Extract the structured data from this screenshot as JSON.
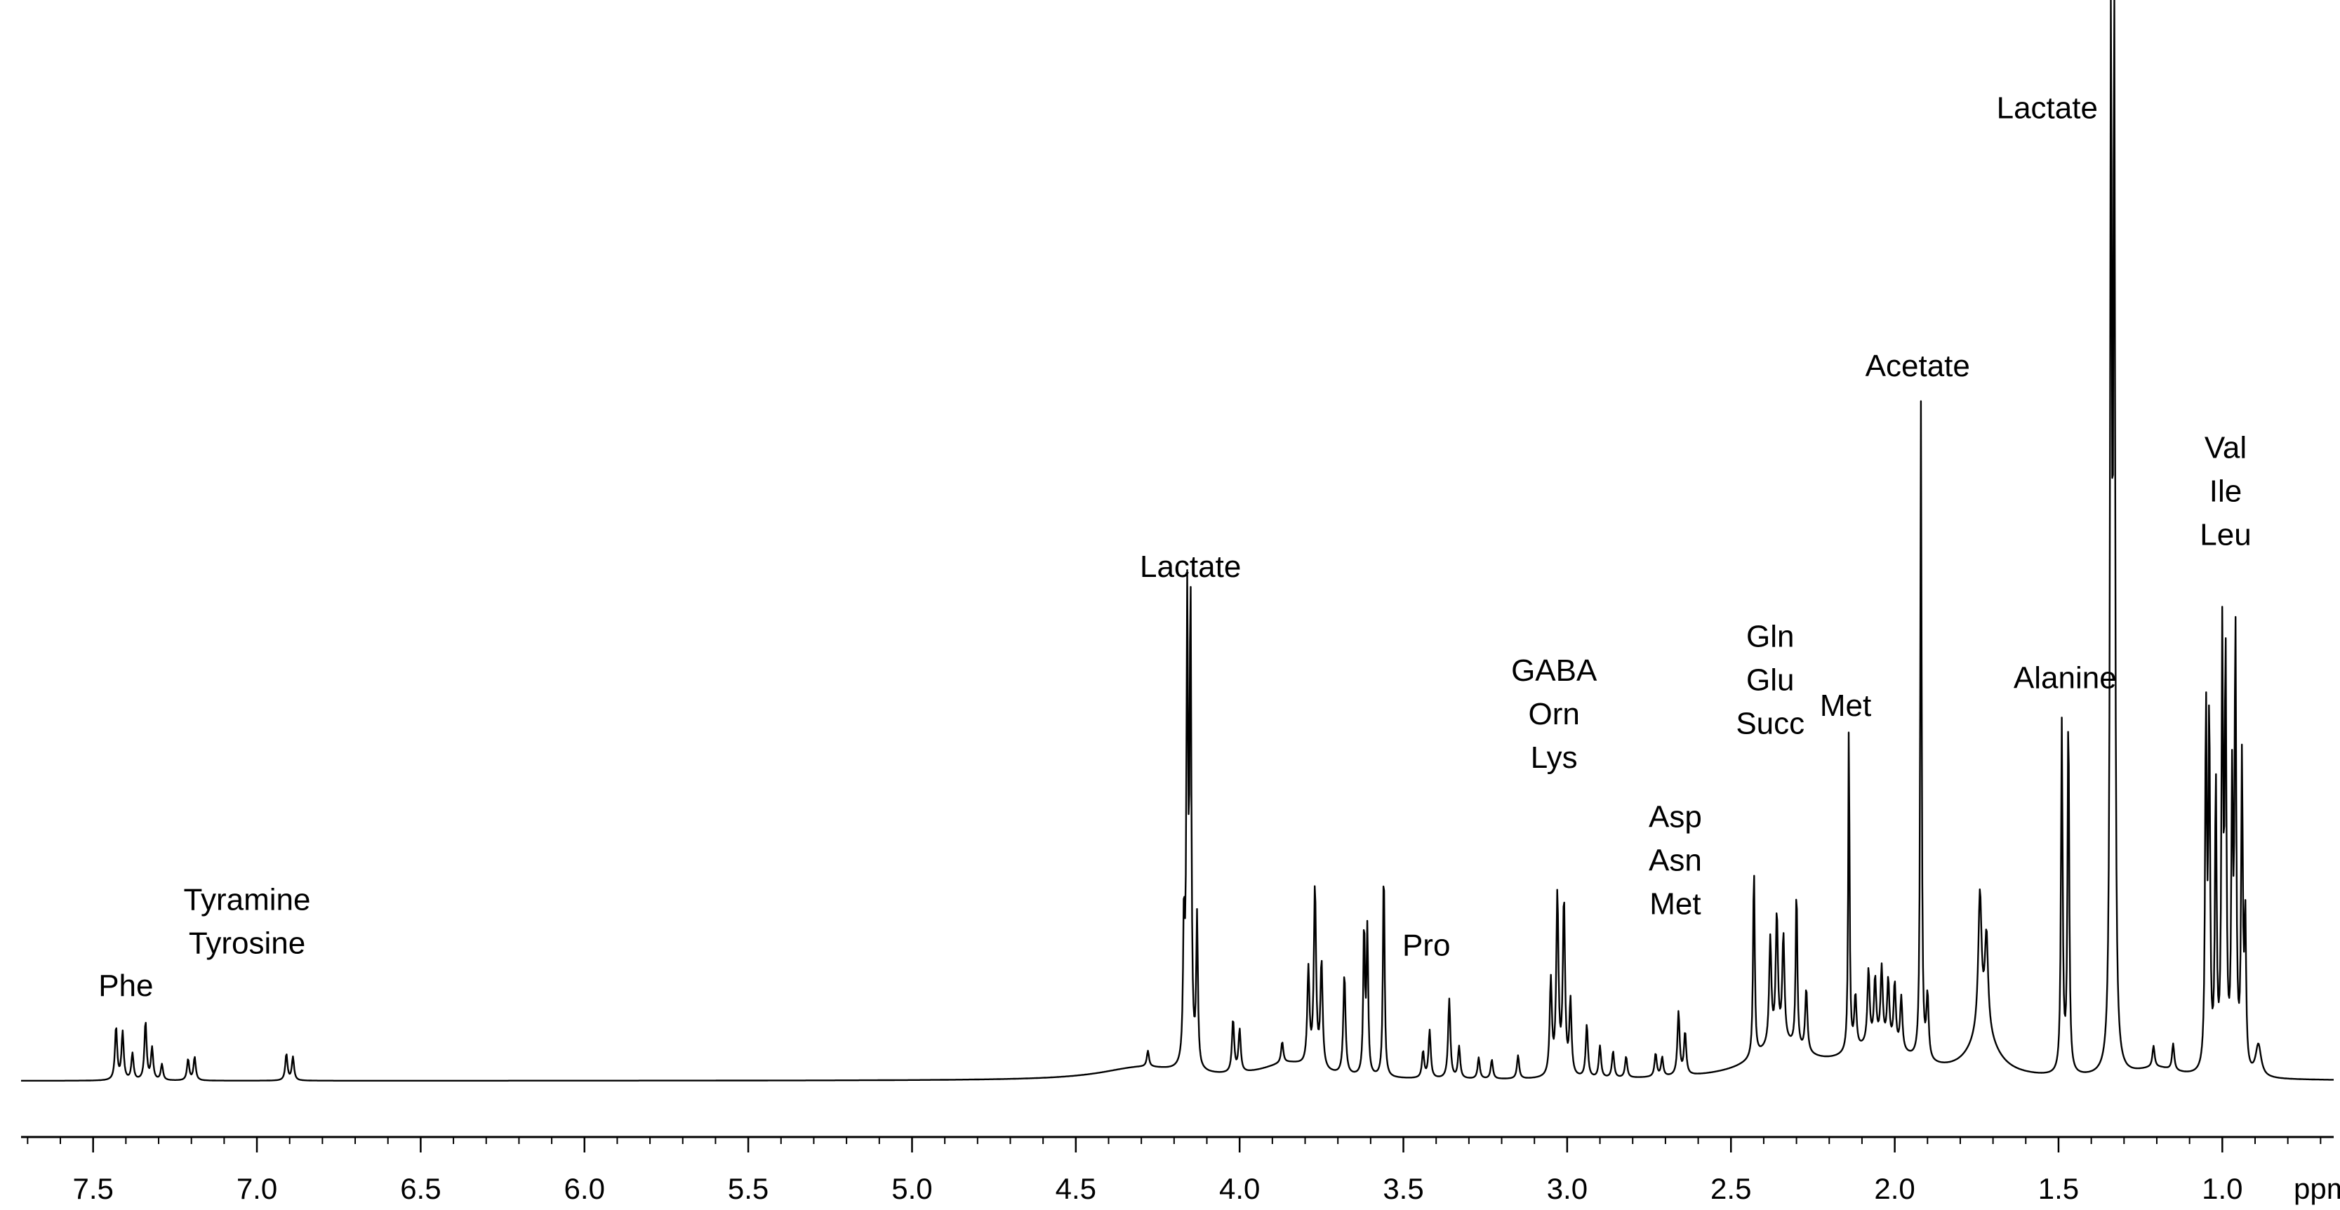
{
  "chart_data": {
    "type": "line",
    "title": "",
    "xlabel": "ppm",
    "ylabel": "",
    "x_reversed": true,
    "xlim": [
      7.72,
      0.66
    ],
    "ylim": [
      0,
      1.0
    ],
    "grid": false,
    "x_ticks": [
      "7.5",
      "7.0",
      "6.5",
      "6.0",
      "5.5",
      "5.0",
      "4.5",
      "4.0",
      "3.5",
      "3.0",
      "2.5",
      "2.0",
      "1.5",
      "1.0"
    ],
    "x_tick_values": [
      7.5,
      7.0,
      6.5,
      6.0,
      5.5,
      5.0,
      4.5,
      4.0,
      3.5,
      3.0,
      2.5,
      2.0,
      1.5,
      1.0
    ],
    "line_color": "#000000",
    "peaks": [
      {
        "x": 7.43,
        "h": 0.05,
        "w": 0.004
      },
      {
        "x": 7.41,
        "h": 0.045,
        "w": 0.004
      },
      {
        "x": 7.38,
        "h": 0.025,
        "w": 0.004
      },
      {
        "x": 7.34,
        "h": 0.055,
        "w": 0.004
      },
      {
        "x": 7.32,
        "h": 0.03,
        "w": 0.004
      },
      {
        "x": 7.29,
        "h": 0.015,
        "w": 0.004
      },
      {
        "x": 7.21,
        "h": 0.02,
        "w": 0.004
      },
      {
        "x": 7.19,
        "h": 0.022,
        "w": 0.004
      },
      {
        "x": 6.91,
        "h": 0.025,
        "w": 0.004
      },
      {
        "x": 6.89,
        "h": 0.022,
        "w": 0.004
      },
      {
        "x": 4.28,
        "h": 0.015,
        "w": 0.004
      },
      {
        "x": 4.17,
        "h": 0.13,
        "w": 0.003
      },
      {
        "x": 4.16,
        "h": 0.425,
        "w": 0.003
      },
      {
        "x": 4.15,
        "h": 0.44,
        "w": 0.003
      },
      {
        "x": 4.13,
        "h": 0.14,
        "w": 0.003
      },
      {
        "x": 4.02,
        "h": 0.05,
        "w": 0.004
      },
      {
        "x": 4.0,
        "h": 0.04,
        "w": 0.004
      },
      {
        "x": 3.87,
        "h": 0.02,
        "w": 0.004
      },
      {
        "x": 3.79,
        "h": 0.09,
        "w": 0.004
      },
      {
        "x": 3.77,
        "h": 0.17,
        "w": 0.004
      },
      {
        "x": 3.75,
        "h": 0.1,
        "w": 0.004
      },
      {
        "x": 3.68,
        "h": 0.095,
        "w": 0.004
      },
      {
        "x": 3.62,
        "h": 0.14,
        "w": 0.003
      },
      {
        "x": 3.61,
        "h": 0.135,
        "w": 0.003
      },
      {
        "x": 3.56,
        "h": 0.2,
        "w": 0.003
      },
      {
        "x": 3.44,
        "h": 0.025,
        "w": 0.004
      },
      {
        "x": 3.42,
        "h": 0.045,
        "w": 0.004
      },
      {
        "x": 3.36,
        "h": 0.075,
        "w": 0.004
      },
      {
        "x": 3.33,
        "h": 0.03,
        "w": 0.004
      },
      {
        "x": 3.27,
        "h": 0.02,
        "w": 0.004
      },
      {
        "x": 3.23,
        "h": 0.018,
        "w": 0.004
      },
      {
        "x": 3.15,
        "h": 0.022,
        "w": 0.004
      },
      {
        "x": 3.05,
        "h": 0.09,
        "w": 0.004
      },
      {
        "x": 3.03,
        "h": 0.17,
        "w": 0.004
      },
      {
        "x": 3.01,
        "h": 0.165,
        "w": 0.004
      },
      {
        "x": 2.99,
        "h": 0.07,
        "w": 0.004
      },
      {
        "x": 2.94,
        "h": 0.05,
        "w": 0.004
      },
      {
        "x": 2.9,
        "h": 0.03,
        "w": 0.004
      },
      {
        "x": 2.86,
        "h": 0.025,
        "w": 0.004
      },
      {
        "x": 2.82,
        "h": 0.02,
        "w": 0.004
      },
      {
        "x": 2.73,
        "h": 0.022,
        "w": 0.004
      },
      {
        "x": 2.71,
        "h": 0.018,
        "w": 0.004
      },
      {
        "x": 2.66,
        "h": 0.06,
        "w": 0.004
      },
      {
        "x": 2.64,
        "h": 0.04,
        "w": 0.004
      },
      {
        "x": 2.43,
        "h": 0.18,
        "w": 0.003
      },
      {
        "x": 2.38,
        "h": 0.1,
        "w": 0.004
      },
      {
        "x": 2.36,
        "h": 0.12,
        "w": 0.004
      },
      {
        "x": 2.34,
        "h": 0.1,
        "w": 0.004
      },
      {
        "x": 2.3,
        "h": 0.15,
        "w": 0.003
      },
      {
        "x": 2.27,
        "h": 0.06,
        "w": 0.004
      },
      {
        "x": 2.14,
        "h": 0.31,
        "w": 0.0025
      },
      {
        "x": 2.12,
        "h": 0.05,
        "w": 0.004
      },
      {
        "x": 2.08,
        "h": 0.07,
        "w": 0.004
      },
      {
        "x": 2.06,
        "h": 0.06,
        "w": 0.004
      },
      {
        "x": 2.04,
        "h": 0.07,
        "w": 0.004
      },
      {
        "x": 2.02,
        "h": 0.06,
        "w": 0.004
      },
      {
        "x": 2.0,
        "h": 0.06,
        "w": 0.004
      },
      {
        "x": 1.98,
        "h": 0.05,
        "w": 0.004
      },
      {
        "x": 1.92,
        "h": 0.62,
        "w": 0.0025
      },
      {
        "x": 1.9,
        "h": 0.06,
        "w": 0.004
      },
      {
        "x": 1.74,
        "h": 0.13,
        "w": 0.006
      },
      {
        "x": 1.72,
        "h": 0.09,
        "w": 0.006
      },
      {
        "x": 1.49,
        "h": 0.33,
        "w": 0.003
      },
      {
        "x": 1.47,
        "h": 0.34,
        "w": 0.003
      },
      {
        "x": 1.34,
        "h": 1.0,
        "w": 0.003
      },
      {
        "x": 1.33,
        "h": 1.0,
        "w": 0.003
      },
      {
        "x": 1.21,
        "h": 0.02,
        "w": 0.004
      },
      {
        "x": 1.15,
        "h": 0.025,
        "w": 0.004
      },
      {
        "x": 1.05,
        "h": 0.34,
        "w": 0.003
      },
      {
        "x": 1.04,
        "h": 0.33,
        "w": 0.003
      },
      {
        "x": 1.02,
        "h": 0.27,
        "w": 0.003
      },
      {
        "x": 1.0,
        "h": 0.4,
        "w": 0.003
      },
      {
        "x": 0.99,
        "h": 0.38,
        "w": 0.003
      },
      {
        "x": 0.97,
        "h": 0.26,
        "w": 0.003
      },
      {
        "x": 0.96,
        "h": 0.41,
        "w": 0.003
      },
      {
        "x": 0.94,
        "h": 0.29,
        "w": 0.003
      },
      {
        "x": 0.93,
        "h": 0.14,
        "w": 0.003
      },
      {
        "x": 0.89,
        "h": 0.03,
        "w": 0.01
      }
    ],
    "broad": [
      {
        "x": 4.3,
        "h": 0.012,
        "w": 0.15
      },
      {
        "x": 3.85,
        "h": 0.015,
        "w": 0.1
      },
      {
        "x": 2.35,
        "h": 0.03,
        "w": 0.1
      },
      {
        "x": 2.05,
        "h": 0.03,
        "w": 0.12
      },
      {
        "x": 1.73,
        "h": 0.04,
        "w": 0.05
      },
      {
        "x": 1.2,
        "h": 0.01,
        "w": 0.08
      }
    ],
    "annotations": [
      {
        "lines": [
          "Phe"
        ],
        "x": 7.4,
        "y": 0.08,
        "anchor": "middle"
      },
      {
        "lines": [
          "Tyramine",
          "Tyrosine"
        ],
        "x": 7.03,
        "y": 0.12,
        "anchor": "middle"
      },
      {
        "lines": [
          "Lactate"
        ],
        "x": 4.15,
        "y": 0.475,
        "anchor": "middle"
      },
      {
        "lines": [
          "Pro"
        ],
        "x": 3.43,
        "y": 0.118,
        "anchor": "middle"
      },
      {
        "lines": [
          "GABA",
          "Orn",
          "Lys"
        ],
        "x": 3.04,
        "y": 0.295,
        "anchor": "middle"
      },
      {
        "lines": [
          "Asp",
          "Asn",
          "Met"
        ],
        "x": 2.67,
        "y": 0.157,
        "anchor": "middle"
      },
      {
        "lines": [
          "Gln",
          "Glu",
          "Succ"
        ],
        "x": 2.38,
        "y": 0.327,
        "anchor": "middle"
      },
      {
        "lines": [
          "Met"
        ],
        "x": 2.15,
        "y": 0.344,
        "anchor": "middle"
      },
      {
        "lines": [
          "Acetate"
        ],
        "x": 1.93,
        "y": 0.664,
        "anchor": "middle"
      },
      {
        "lines": [
          "Alanine"
        ],
        "x": 1.48,
        "y": 0.37,
        "anchor": "middle"
      },
      {
        "lines": [
          "Lactate"
        ],
        "x": 1.38,
        "y": 0.907,
        "anchor": "end"
      },
      {
        "lines": [
          "Val",
          "Ile",
          "Leu"
        ],
        "x": 0.99,
        "y": 0.505,
        "anchor": "middle"
      }
    ]
  }
}
